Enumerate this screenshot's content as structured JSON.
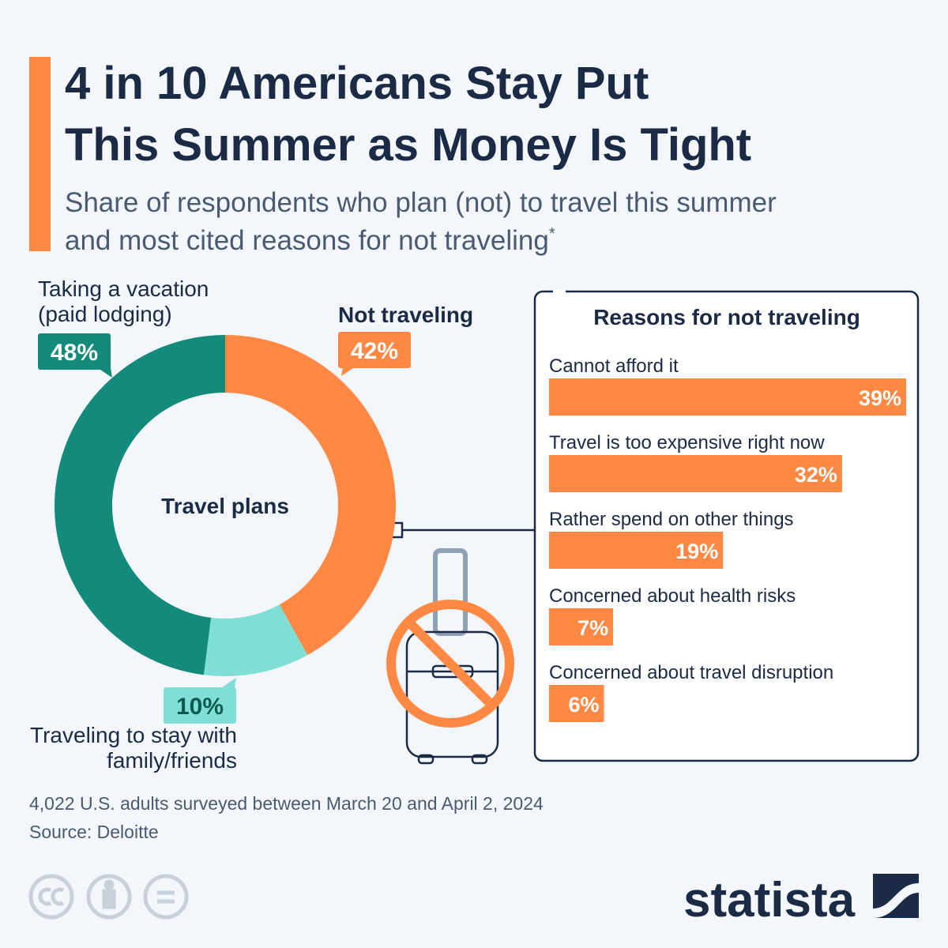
{
  "title_lines": [
    "4 in 10 Americans Stay Put",
    "This Summer as Money Is Tight"
  ],
  "subtitle_lines": [
    "Share of respondents who plan (not) to travel this summer",
    "and most cited reasons for not traveling"
  ],
  "subtitle_mark": "*",
  "chart_data": [
    {
      "type": "donut",
      "center_label": "Travel plans",
      "categories": [
        "Not traveling",
        "Traveling to stay with family/friends",
        "Taking a vacation (paid lodging)"
      ],
      "values": [
        42,
        10,
        48
      ],
      "value_labels": [
        "42%",
        "10%",
        "48%"
      ],
      "colors": [
        "#ff8845",
        "#7fded5",
        "#148a7a"
      ]
    },
    {
      "type": "bar",
      "title": "Reasons for not traveling",
      "categories": [
        "Cannot afford it",
        "Travel is too expensive right now",
        "Rather spend on other things",
        "Concerned about health risks",
        "Concerned about travel disruption"
      ],
      "values": [
        39,
        32,
        19,
        7,
        6
      ],
      "value_labels": [
        "39%",
        "32%",
        "19%",
        "7%",
        "6%"
      ],
      "color": "#ff8845"
    }
  ],
  "notes": "4,022 U.S. adults surveyed between March 20 and April 2, 2024",
  "source": "Source: Deloitte",
  "brand": "statista"
}
